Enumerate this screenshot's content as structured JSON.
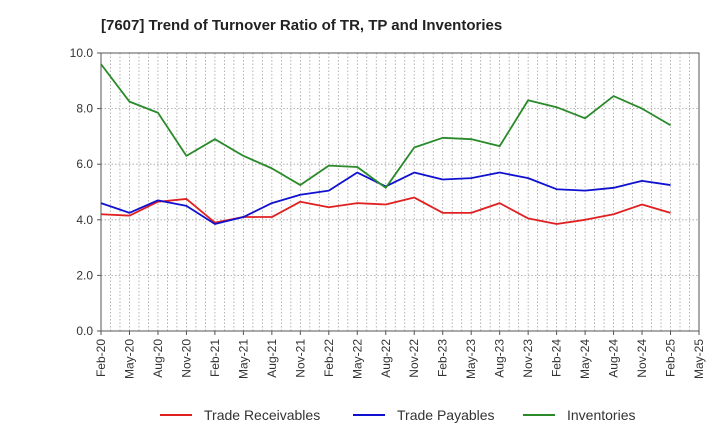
{
  "chart_data": {
    "type": "line",
    "title": "[7607]  Trend of Turnover Ratio of TR, TP and Inventories",
    "xlabel": "",
    "ylabel": "",
    "ylim": [
      0,
      10
    ],
    "yticks": [
      "0.0",
      "2.0",
      "4.0",
      "6.0",
      "8.0",
      "10.0"
    ],
    "x": [
      "Feb-20",
      "May-20",
      "Aug-20",
      "Nov-20",
      "Feb-21",
      "May-21",
      "Aug-21",
      "Nov-21",
      "Feb-22",
      "May-22",
      "Aug-22",
      "Nov-22",
      "Feb-23",
      "May-23",
      "Aug-23",
      "Nov-23",
      "Feb-24",
      "May-24",
      "Aug-24",
      "Nov-24",
      "Feb-25",
      "May-25"
    ],
    "grid": true,
    "legend_position": "bottom",
    "series": [
      {
        "name": "Trade Receivables",
        "color": "#e02020",
        "values": [
          4.2,
          4.15,
          4.65,
          4.75,
          3.9,
          4.1,
          4.1,
          4.65,
          4.45,
          4.6,
          4.55,
          4.8,
          4.25,
          4.25,
          4.6,
          4.05,
          3.85,
          4.0,
          4.2,
          4.55,
          4.25,
          null
        ]
      },
      {
        "name": "Trade Payables",
        "color": "#1010d0",
        "values": [
          4.6,
          4.25,
          4.7,
          4.5,
          3.85,
          4.1,
          4.6,
          4.9,
          5.05,
          5.7,
          5.2,
          5.7,
          5.45,
          5.5,
          5.7,
          5.5,
          5.1,
          5.05,
          5.15,
          5.4,
          5.25,
          null
        ]
      },
      {
        "name": "Inventories",
        "color": "#2a8a2a",
        "values": [
          9.6,
          8.25,
          7.85,
          6.3,
          6.9,
          6.3,
          5.85,
          5.25,
          5.95,
          5.9,
          5.15,
          6.6,
          6.95,
          6.9,
          6.65,
          8.3,
          8.05,
          7.65,
          8.45,
          8.0,
          7.4,
          null
        ]
      }
    ]
  }
}
